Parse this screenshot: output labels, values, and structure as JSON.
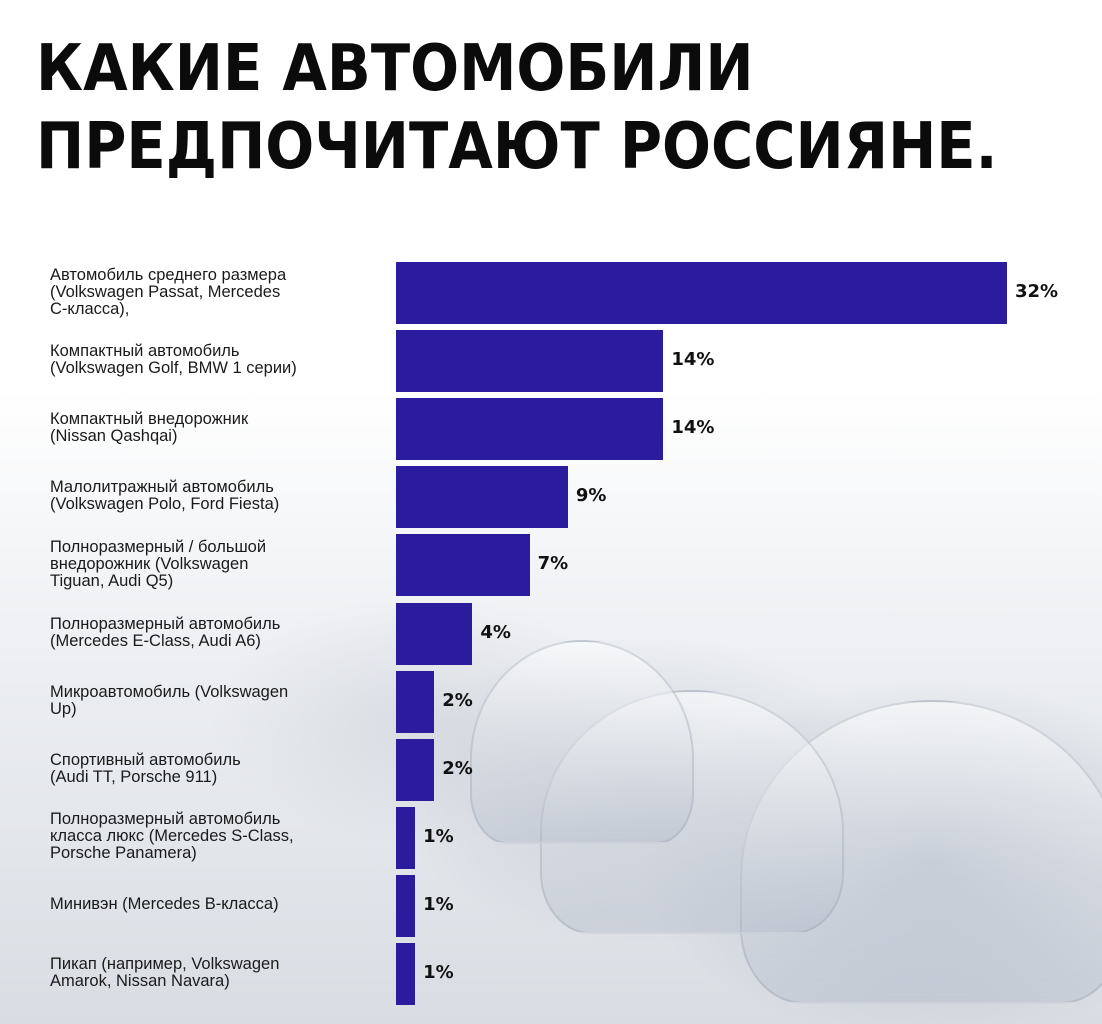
{
  "title_lines": [
    "КАКИЕ АВТОМОБИЛИ",
    "ПРЕДПОЧИТАЮТ РОССИЯНЕ."
  ],
  "colors": {
    "bar": "#2a1c9c",
    "title": "#0b0b0b"
  },
  "chart_data": {
    "type": "bar",
    "orientation": "horizontal",
    "title": "КАКИЕ АВТОМОБИЛИ ПРЕДПОЧИТАЮТ РОССИЯНЕ.",
    "xlabel": "",
    "ylabel": "",
    "xlim": [
      0,
      32
    ],
    "grid": false,
    "categories": [
      "Автомобиль среднего размера\n(Volkswagen Passat, Mercedes\nC-класса),",
      "Компактный автомобиль\n(Volkswagen Golf, BMW 1 серии)",
      "Компактный внедорожник\n(Nissan Qashqai)",
      "Малолитражный автомобиль\n(Volkswagen Polo, Ford Fiesta)",
      "Полноразмерный / большой\nвнедорожник (Volkswagen\nTiguan, Audi Q5)",
      "Полноразмерный автомобиль\n(Mercedes E-Class, Audi A6)",
      "Микроавтомобиль (Volkswagen\nUp)",
      "Спортивный автомобиль\n(Audi TT, Porsche 911)",
      "Полноразмерный автомобиль\nкласса люкс (Mercedes S-Class,\nPorsche Panamera)",
      "Минивэн (Mercedes B-класса)",
      "Пикап (например, Volkswagen\nAmarok, Nissan Navara)"
    ],
    "values": [
      32,
      14,
      14,
      9,
      7,
      4,
      2,
      2,
      1,
      1,
      1
    ],
    "value_labels": [
      "32%",
      "14%",
      "14%",
      "9%",
      "7%",
      "4%",
      "2%",
      "2%",
      "1%",
      "1%",
      "1%"
    ]
  }
}
